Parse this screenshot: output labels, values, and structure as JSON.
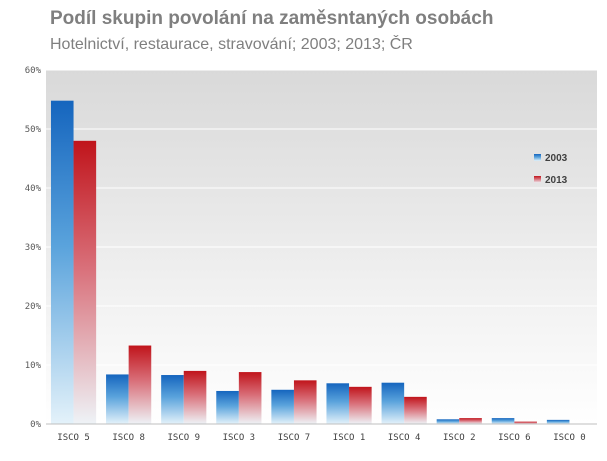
{
  "chart_data": {
    "type": "bar",
    "title": "Podíl skupin povolání na zaměsntaných osobách",
    "subtitle": "Hotelnictví, restaurace,  stravování; 2003; 2013; ČR",
    "categories": [
      "ISCO 5",
      "ISCO 8",
      "ISCO 9",
      "ISCO 3",
      "ISCO 7",
      "ISCO 1",
      "ISCO 4",
      "ISCO 2",
      "ISCO 6",
      "ISCO 0"
    ],
    "series": [
      {
        "name": "2003",
        "values": [
          54.8,
          8.4,
          8.3,
          5.6,
          5.8,
          6.9,
          7.0,
          0.8,
          1.0,
          0.7
        ]
      },
      {
        "name": "2013",
        "values": [
          48.0,
          13.3,
          9.0,
          8.8,
          7.4,
          6.3,
          4.6,
          1.0,
          0.4,
          0.0
        ]
      }
    ],
    "ylim": [
      0,
      60
    ],
    "yticks": [
      "0%",
      "10%",
      "20%",
      "30%",
      "40%",
      "50%",
      "60%"
    ],
    "grid": true,
    "legend_position": "right",
    "colors": {
      "2003": "#1a6fc0",
      "2013": "#b8161c"
    }
  }
}
